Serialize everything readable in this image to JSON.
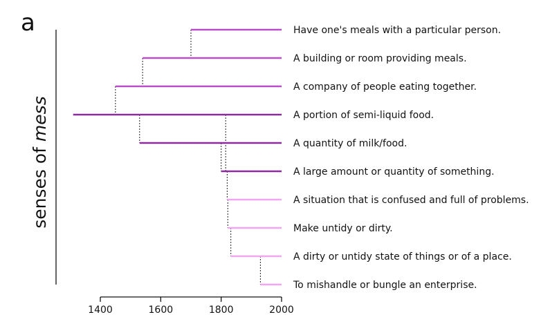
{
  "panel_label": "a",
  "chart_data": {
    "type": "dendrogram-timeline",
    "ylabel_prefix": "senses of ",
    "ylabel_emphasis": "mess",
    "xlim": [
      1400,
      2000
    ],
    "x_ticks": [
      1400,
      1600,
      1800,
      2000
    ],
    "colors": {
      "axis": "#111111",
      "connector": "#333333"
    },
    "senses": [
      {
        "label": "Have one's meals with a particular person.",
        "start": 1700,
        "color": "#b84fc9"
      },
      {
        "label": "A building or room providing meals.",
        "start": 1540,
        "color": "#b84fc9"
      },
      {
        "label": "A company of people eating together.",
        "start": 1450,
        "color": "#b84fc9"
      },
      {
        "label": "A portion of semi-liquid food.",
        "start": 1310,
        "color": "#8c2a9e"
      },
      {
        "label": "A quantity of milk/food.",
        "start": 1530,
        "color": "#8c2a9e"
      },
      {
        "label": "A large amount or quantity of something.",
        "start": 1800,
        "color": "#8c2a9e"
      },
      {
        "label": "A situation that is confused and full of problems.",
        "start": 1820,
        "color": "#f0a6f0"
      },
      {
        "label": "Make untidy or dirty.",
        "start": 1822,
        "color": "#f0a6f0"
      },
      {
        "label": "A dirty or untidy state of things or of a place.",
        "start": 1832,
        "color": "#f0a6f0"
      },
      {
        "label": "To mishandle or bungle an enterprise.",
        "start": 1930,
        "color": "#f0a6f0"
      }
    ],
    "links": [
      {
        "from": 0,
        "to": 1,
        "x": 1700
      },
      {
        "from": 1,
        "to": 2,
        "x": 1540
      },
      {
        "from": 2,
        "to": 3,
        "x": 1450
      },
      {
        "from": 3,
        "to": 4,
        "x": 1530
      },
      {
        "from": 3,
        "to": 5,
        "x": 1815
      },
      {
        "from": 4,
        "to": 5,
        "x": 1800
      },
      {
        "from": 5,
        "to": 6,
        "x": 1820
      },
      {
        "from": 6,
        "to": 7,
        "x": 1822
      },
      {
        "from": 7,
        "to": 8,
        "x": 1832
      },
      {
        "from": 8,
        "to": 9,
        "x": 1930
      }
    ]
  }
}
